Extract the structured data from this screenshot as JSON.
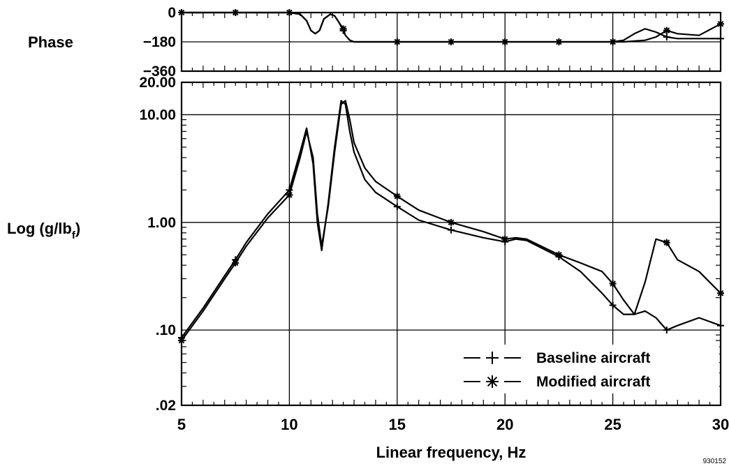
{
  "chart_data": [
    {
      "type": "line",
      "panel": "phase",
      "ylabel": "Phase",
      "yticks": [
        "0",
        "−180",
        "−360"
      ],
      "ytick_values": [
        0,
        -180,
        -360
      ],
      "ylim": [
        -360,
        0
      ],
      "xlim": [
        5,
        30
      ],
      "grid": true,
      "series": [
        {
          "name": "Baseline aircraft",
          "marker": "plus",
          "x": [
            5,
            7.5,
            10,
            10.5,
            10.8,
            11,
            11.2,
            11.4,
            11.6,
            11.9,
            12.1,
            12.3,
            12.5,
            12.6,
            12.8,
            13,
            15,
            17.5,
            20,
            22.5,
            25,
            25.5,
            26,
            26.5,
            27,
            27.5,
            28,
            29,
            30
          ],
          "y": [
            0,
            0,
            0,
            -10,
            -50,
            -110,
            -130,
            -110,
            -40,
            -10,
            -20,
            -60,
            -110,
            -140,
            -170,
            -180,
            -180,
            -180,
            -180,
            -180,
            -180,
            -170,
            -130,
            -100,
            -120,
            -150,
            -160,
            -160,
            -160
          ]
        },
        {
          "name": "Modified aircraft",
          "marker": "asterisk",
          "x": [
            5,
            7.5,
            10,
            10.5,
            10.8,
            11,
            11.2,
            11.4,
            11.6,
            11.9,
            12.1,
            12.3,
            12.5,
            12.6,
            12.8,
            13,
            15,
            17.5,
            20,
            22.5,
            25,
            25.5,
            26,
            26.5,
            27,
            27.5,
            28,
            29,
            30
          ],
          "y": [
            0,
            0,
            0,
            -10,
            -50,
            -110,
            -130,
            -110,
            -40,
            -10,
            -20,
            -60,
            -100,
            -140,
            -170,
            -180,
            -180,
            -180,
            -180,
            -180,
            -180,
            -180,
            -175,
            -170,
            -150,
            -110,
            -130,
            -140,
            -70
          ]
        }
      ]
    },
    {
      "type": "line",
      "panel": "magnitude",
      "xlabel": "Linear frequency, Hz",
      "ylabel_main": "Log (g/lb",
      "ylabel_sub": "f",
      "ylabel_close": ")",
      "xticks": [
        "5",
        "10",
        "15",
        "20",
        "25",
        "30"
      ],
      "xtick_values": [
        5,
        10,
        15,
        20,
        25,
        30
      ],
      "yticks": [
        "20.00",
        "10.00",
        "1.00",
        ".10",
        ".02"
      ],
      "ytick_values": [
        20,
        10,
        1,
        0.1,
        0.02
      ],
      "yscale": "log",
      "ylim": [
        0.02,
        20
      ],
      "xlim": [
        5,
        30
      ],
      "grid": true,
      "legend_position": "bottom-right",
      "series": [
        {
          "name": "Baseline aircraft",
          "marker": "plus",
          "x": [
            5,
            6,
            7,
            7.5,
            8,
            9,
            10,
            10.5,
            10.8,
            11.1,
            11.3,
            11.5,
            11.8,
            12.1,
            12.4,
            12.6,
            12.8,
            13,
            13.5,
            14,
            15,
            16,
            17.5,
            19,
            20,
            20.5,
            21,
            22.5,
            23.5,
            24.5,
            25,
            25.5,
            26,
            26.5,
            27,
            27.5,
            28,
            29,
            30
          ],
          "y": [
            0.085,
            0.16,
            0.32,
            0.45,
            0.65,
            1.2,
            2.0,
            4.5,
            7.5,
            3.5,
            1.0,
            0.55,
            1.5,
            5.0,
            13.5,
            12.5,
            7.0,
            4.5,
            2.5,
            1.9,
            1.4,
            1.05,
            0.85,
            0.72,
            0.66,
            0.7,
            0.68,
            0.48,
            0.35,
            0.22,
            0.17,
            0.14,
            0.14,
            0.15,
            0.13,
            0.1,
            0.11,
            0.13,
            0.11
          ]
        },
        {
          "name": "Modified aircraft",
          "marker": "asterisk",
          "x": [
            5,
            6,
            7,
            7.5,
            8,
            9,
            10,
            10.5,
            10.8,
            11.1,
            11.3,
            11.5,
            11.8,
            12.1,
            12.4,
            12.6,
            12.8,
            13,
            13.5,
            14,
            15,
            16,
            17.5,
            19,
            20,
            20.5,
            21,
            22.5,
            23.5,
            24.5,
            25,
            25.5,
            26,
            26.5,
            27,
            27.5,
            28,
            29,
            30
          ],
          "y": [
            0.08,
            0.15,
            0.3,
            0.42,
            0.6,
            1.1,
            1.8,
            4.0,
            7.0,
            4.0,
            1.2,
            0.6,
            1.4,
            4.5,
            12.5,
            13.5,
            9.0,
            5.5,
            3.2,
            2.4,
            1.75,
            1.3,
            1.0,
            0.82,
            0.7,
            0.72,
            0.7,
            0.5,
            0.42,
            0.35,
            0.27,
            0.19,
            0.14,
            0.28,
            0.7,
            0.65,
            0.45,
            0.35,
            0.22
          ]
        }
      ]
    }
  ],
  "legend": [
    {
      "label": "Baseline aircraft",
      "marker": "plus"
    },
    {
      "label": "Modified aircraft",
      "marker": "asterisk"
    }
  ],
  "figure_id": "930152"
}
